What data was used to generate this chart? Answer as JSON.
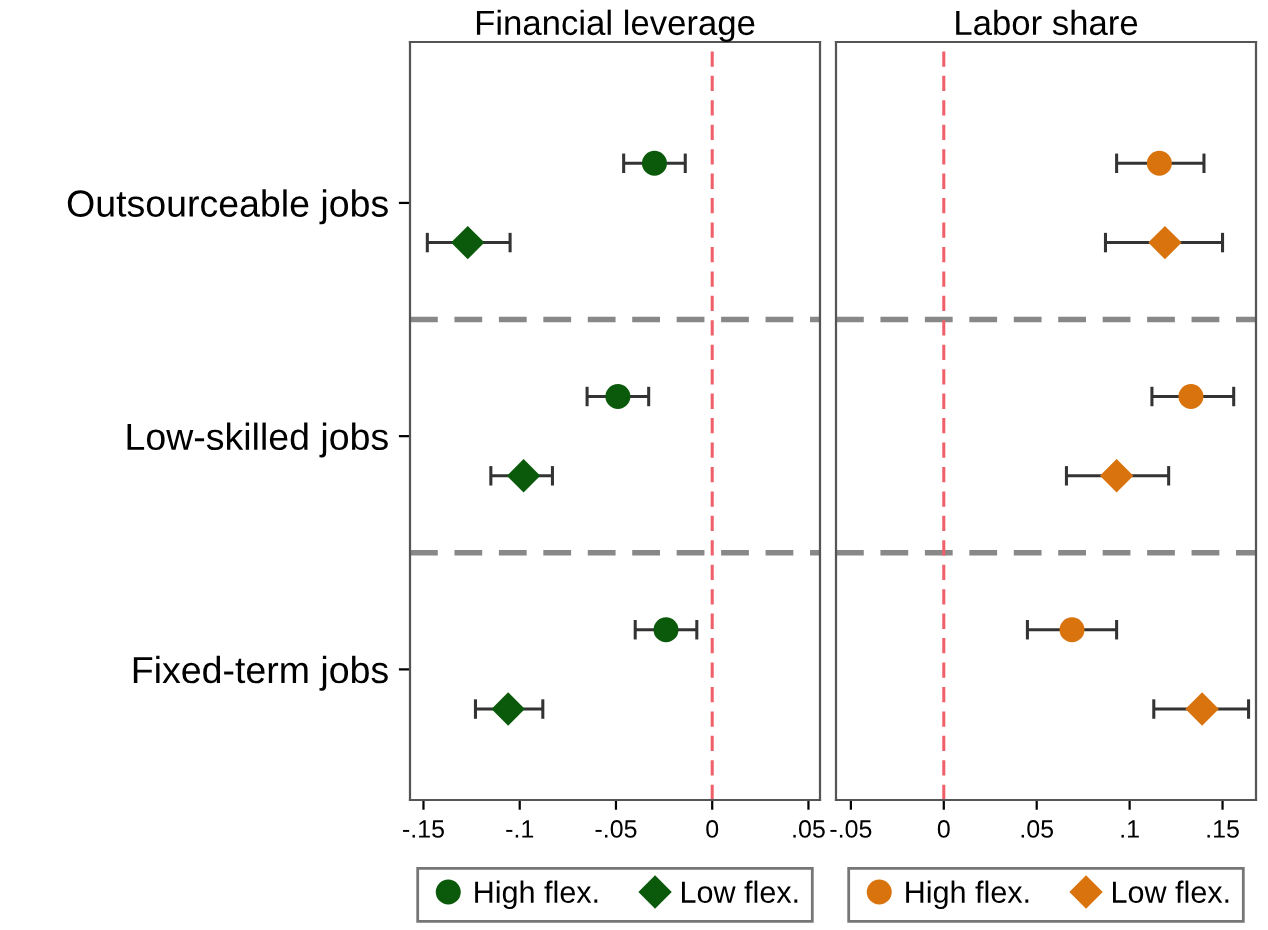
{
  "chart_data": [
    {
      "type": "scatter",
      "title": "Financial leverage",
      "orientation": "horizontal",
      "categories": [
        "Outsourceable jobs",
        "Low-skilled jobs",
        "Fixed-term jobs"
      ],
      "xlim": [
        -0.157,
        0.056
      ],
      "xticks": [
        {
          "value": -0.15,
          "label": "-.15"
        },
        {
          "value": -0.1,
          "label": "-.1"
        },
        {
          "value": -0.05,
          "label": "-.05"
        },
        0,
        {
          "value": 0.05,
          "label": ".05"
        }
      ],
      "series": [
        {
          "name": "High flex.",
          "color": "#0b5a0b",
          "marker": "circle",
          "values": [
            -0.03,
            -0.049,
            -0.024
          ],
          "errors": [
            [
              -0.046,
              -0.014
            ],
            [
              -0.065,
              -0.033
            ],
            [
              -0.04,
              -0.008
            ]
          ]
        },
        {
          "name": "Low flex.",
          "color": "#0b5a0b",
          "marker": "diamond",
          "values": [
            -0.127,
            -0.098,
            -0.106
          ],
          "errors": [
            [
              -0.148,
              -0.105
            ],
            [
              -0.115,
              -0.083
            ],
            [
              -0.123,
              -0.088
            ]
          ]
        }
      ],
      "ref_lines": [
        {
          "axis": "x",
          "value": 0,
          "color": "#f0606a",
          "line_style": "dashed"
        }
      ],
      "legend": "bottom",
      "grid": false
    },
    {
      "type": "scatter",
      "title": "Labor share",
      "orientation": "horizontal",
      "categories": [
        null,
        null,
        null
      ],
      "xlim": [
        -0.058,
        0.168
      ],
      "xticks": [
        {
          "value": -0.05,
          "label": "-.05"
        },
        0,
        {
          "value": 0.05,
          "label": ".05"
        },
        {
          "value": 0.1,
          "label": ".1"
        },
        {
          "value": 0.15,
          "label": ".15"
        }
      ],
      "tick_labels": "x",
      "series": [
        {
          "name": "High flex.",
          "color": "#d9730d",
          "marker": "circle",
          "values": [
            0.116,
            0.133,
            0.069
          ],
          "errors": [
            [
              0.093,
              0.14
            ],
            [
              0.112,
              0.156
            ],
            [
              0.045,
              0.093
            ]
          ]
        },
        {
          "name": "Low flex.",
          "color": "#d9730d",
          "marker": "diamond",
          "values": [
            0.119,
            0.093,
            0.139
          ],
          "errors": [
            [
              0.087,
              0.15
            ],
            [
              0.066,
              0.121
            ],
            [
              0.113,
              0.164
            ]
          ]
        }
      ],
      "ref_lines": [
        {
          "axis": "x",
          "value": 0,
          "color": "#f0606a",
          "line_style": "dashed"
        }
      ],
      "legend": "bottom",
      "grid": false
    }
  ]
}
